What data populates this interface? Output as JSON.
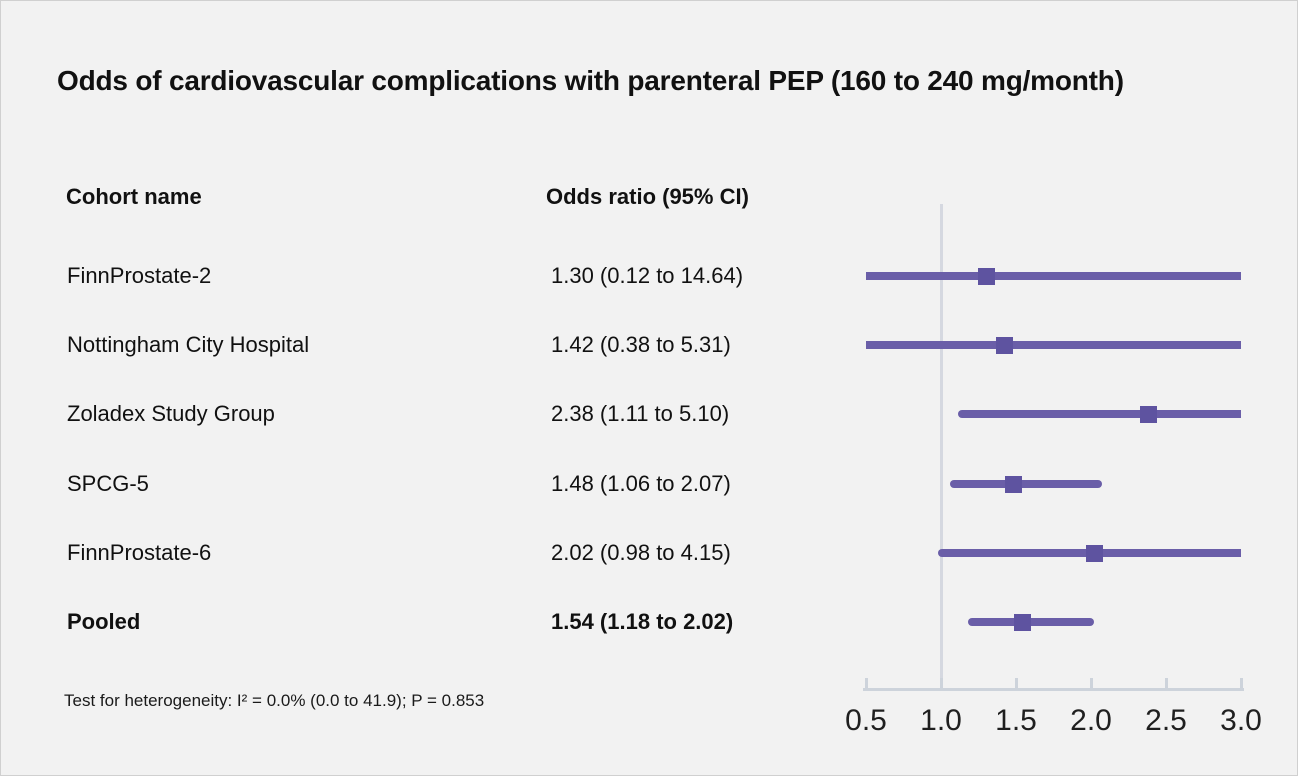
{
  "title": "Odds of cardiovascular complications with parenteral PEP (160 to 240 mg/month)",
  "table": {
    "col1_header": "Cohort name",
    "col2_header": "Odds ratio (95% CI)",
    "rows": [
      {
        "cohort": "FinnProstate-2",
        "or_text": "1.30 (0.12 to 14.64)",
        "bold": false
      },
      {
        "cohort": "Nottingham City Hospital",
        "or_text": "1.42 (0.38 to 5.31)",
        "bold": false
      },
      {
        "cohort": "Zoladex Study Group",
        "or_text": "2.38 (1.11 to 5.10)",
        "bold": false
      },
      {
        "cohort": "SPCG-5",
        "or_text": "1.48 (1.06 to 2.07)",
        "bold": false
      },
      {
        "cohort": "FinnProstate-6",
        "or_text": "2.02 (0.98 to 4.15)",
        "bold": false
      },
      {
        "cohort": "Pooled",
        "or_text": "1.54 (1.18 to 2.02)",
        "bold": true
      }
    ]
  },
  "footnote": "Test for heterogeneity: I² = 0.0% (0.0 to 41.9); P = 0.853",
  "chart_data": {
    "type": "forest",
    "title": "Odds of cardiovascular complications with parenteral PEP (160 to 240 mg/month)",
    "x_axis": {
      "range": [
        0.5,
        3.0
      ],
      "ticks": [
        0.5,
        1.0,
        1.5,
        2.0,
        2.5,
        3.0
      ],
      "tick_labels": [
        "0.5",
        "1.0",
        "1.5",
        "2.0",
        "2.5",
        "3.0"
      ],
      "reference_line": 1.0,
      "scale": "linear"
    },
    "studies": [
      {
        "name": "FinnProstate-2",
        "or": 1.3,
        "ci_low": 0.12,
        "ci_high": 14.64,
        "pooled": false
      },
      {
        "name": "Nottingham City Hospital",
        "or": 1.42,
        "ci_low": 0.38,
        "ci_high": 5.31,
        "pooled": false
      },
      {
        "name": "Zoladex Study Group",
        "or": 2.38,
        "ci_low": 1.11,
        "ci_high": 5.1,
        "pooled": false
      },
      {
        "name": "SPCG-5",
        "or": 1.48,
        "ci_low": 1.06,
        "ci_high": 2.07,
        "pooled": false
      },
      {
        "name": "FinnProstate-6",
        "or": 2.02,
        "ci_low": 0.98,
        "ci_high": 4.15,
        "pooled": false
      },
      {
        "name": "Pooled",
        "or": 1.54,
        "ci_low": 1.18,
        "ci_high": 2.02,
        "pooled": true
      }
    ],
    "heterogeneity": {
      "i_squared_pct": 0.0,
      "i_squared_ci": [
        0.0,
        41.9
      ],
      "p_value": 0.853
    },
    "colors": {
      "ci_line": "#6a5ea8",
      "marker": "#5e53a0",
      "reference_line": "#d5d8e0",
      "axis": "#cdd3db",
      "background": "#f2f2f2",
      "text": "#111111"
    }
  }
}
